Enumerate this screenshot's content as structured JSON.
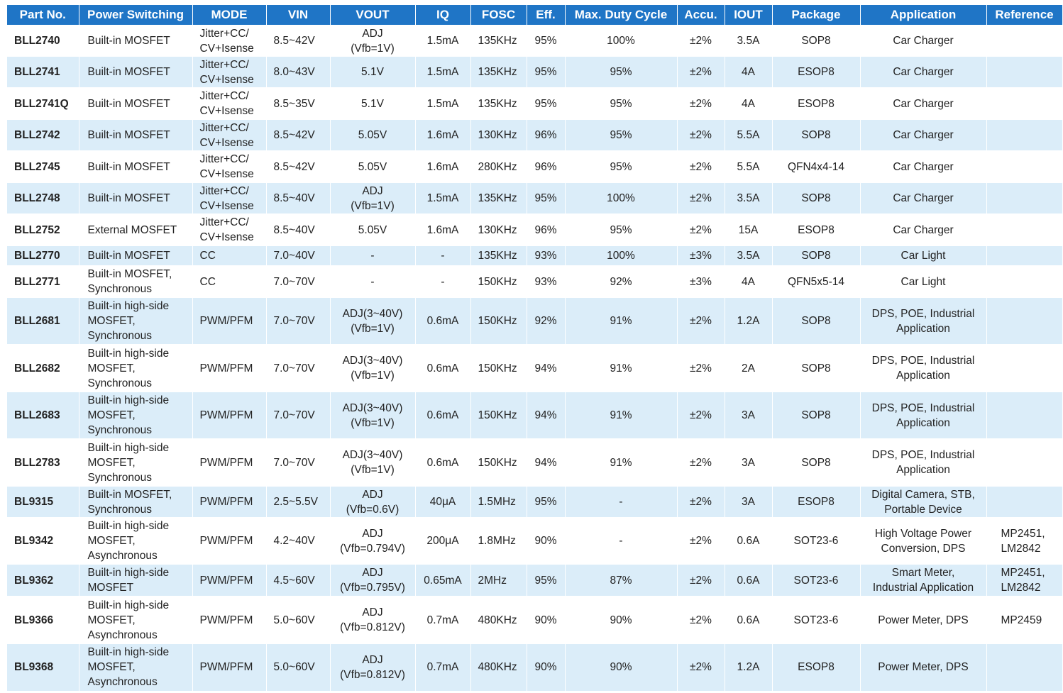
{
  "table": {
    "headers": [
      "Part No.",
      "Power Switching",
      "MODE",
      "VIN",
      "VOUT",
      "IQ",
      "FOSC",
      "Eff.",
      "Max. Duty Cycle",
      "Accu.",
      "IOUT",
      "Package",
      "Application",
      "Reference"
    ],
    "rows": [
      {
        "part": "BLL2740",
        "switching": [
          "Built-in MOSFET"
        ],
        "mode": [
          "Jitter+CC/",
          "CV+Isense"
        ],
        "vin": "8.5~42V",
        "vout": [
          "ADJ",
          "(Vfb=1V)"
        ],
        "iq": "1.5mA",
        "fosc": "135KHz",
        "eff": "95%",
        "duty": "100%",
        "accu": "±2%",
        "iout": "3.5A",
        "package": "SOP8",
        "application": [
          "Car Charger"
        ],
        "reference": []
      },
      {
        "part": "BLL2741",
        "switching": [
          "Built-in MOSFET"
        ],
        "mode": [
          "Jitter+CC/",
          "CV+Isense"
        ],
        "vin": "8.0~43V",
        "vout": [
          "5.1V"
        ],
        "iq": "1.5mA",
        "fosc": "135KHz",
        "eff": "95%",
        "duty": "95%",
        "accu": "±2%",
        "iout": "4A",
        "package": "ESOP8",
        "application": [
          "Car Charger"
        ],
        "reference": []
      },
      {
        "part": "BLL2741Q",
        "switching": [
          "Built-in MOSFET"
        ],
        "mode": [
          "Jitter+CC/",
          "CV+Isense"
        ],
        "vin": "8.5~35V",
        "vout": [
          "5.1V"
        ],
        "iq": "1.5mA",
        "fosc": "135KHz",
        "eff": "95%",
        "duty": "95%",
        "accu": "±2%",
        "iout": "4A",
        "package": "ESOP8",
        "application": [
          "Car Charger"
        ],
        "reference": []
      },
      {
        "part": "BLL2742",
        "switching": [
          "Built-in MOSFET"
        ],
        "mode": [
          "Jitter+CC/",
          "CV+Isense"
        ],
        "vin": "8.5~42V",
        "vout": [
          "5.05V"
        ],
        "iq": "1.6mA",
        "fosc": "130KHz",
        "eff": "96%",
        "duty": "95%",
        "accu": "±2%",
        "iout": "5.5A",
        "package": "SOP8",
        "application": [
          "Car Charger"
        ],
        "reference": []
      },
      {
        "part": "BLL2745",
        "switching": [
          "Built-in MOSFET"
        ],
        "mode": [
          "Jitter+CC/",
          "CV+Isense"
        ],
        "vin": "8.5~42V",
        "vout": [
          "5.05V"
        ],
        "iq": "1.6mA",
        "fosc": "280KHz",
        "eff": "96%",
        "duty": "95%",
        "accu": "±2%",
        "iout": "5.5A",
        "package": "QFN4x4-14",
        "application": [
          "Car Charger"
        ],
        "reference": []
      },
      {
        "part": "BLL2748",
        "switching": [
          "Built-in MOSFET"
        ],
        "mode": [
          "Jitter+CC/",
          "CV+Isense"
        ],
        "vin": "8.5~40V",
        "vout": [
          "ADJ",
          "(Vfb=1V)"
        ],
        "iq": "1.5mA",
        "fosc": "135KHz",
        "eff": "95%",
        "duty": "100%",
        "accu": "±2%",
        "iout": "3.5A",
        "package": "SOP8",
        "application": [
          "Car Charger"
        ],
        "reference": []
      },
      {
        "part": "BLL2752",
        "switching": [
          "External MOSFET"
        ],
        "mode": [
          "Jitter+CC/",
          "CV+Isense"
        ],
        "vin": "8.5~40V",
        "vout": [
          "5.05V"
        ],
        "iq": "1.6mA",
        "fosc": "130KHz",
        "eff": "96%",
        "duty": "95%",
        "accu": "±2%",
        "iout": "15A",
        "package": "ESOP8",
        "application": [
          "Car Charger"
        ],
        "reference": []
      },
      {
        "part": "BLL2770",
        "switching": [
          "Built-in MOSFET"
        ],
        "mode": [
          "CC"
        ],
        "vin": "7.0~40V",
        "vout": [
          "-"
        ],
        "iq": "-",
        "fosc": "135KHz",
        "eff": "93%",
        "duty": "100%",
        "accu": "±3%",
        "iout": "3.5A",
        "package": "SOP8",
        "application": [
          "Car Light"
        ],
        "reference": []
      },
      {
        "part": "BLL2771",
        "switching": [
          "Built-in MOSFET,",
          "Synchronous"
        ],
        "mode": [
          "CC"
        ],
        "vin": "7.0~70V",
        "vout": [
          "-"
        ],
        "iq": "-",
        "fosc": "150KHz",
        "eff": "93%",
        "duty": "92%",
        "accu": "±3%",
        "iout": "4A",
        "package": "QFN5x5-14",
        "application": [
          "Car Light"
        ],
        "reference": []
      },
      {
        "part": "BLL2681",
        "switching": [
          "Built-in high-side",
          "MOSFET,",
          "Synchronous"
        ],
        "mode": [
          "PWM/PFM"
        ],
        "vin": "7.0~70V",
        "vout": [
          "ADJ(3~40V)",
          "(Vfb=1V)"
        ],
        "iq": "0.6mA",
        "fosc": "150KHz",
        "eff": "92%",
        "duty": "91%",
        "accu": "±2%",
        "iout": "1.2A",
        "package": "SOP8",
        "application": [
          "DPS, POE, Industrial",
          "Application"
        ],
        "reference": []
      },
      {
        "part": "BLL2682",
        "switching": [
          "Built-in high-side",
          "MOSFET,",
          "Synchronous"
        ],
        "mode": [
          "PWM/PFM"
        ],
        "vin": "7.0~70V",
        "vout": [
          "ADJ(3~40V)",
          "(Vfb=1V)"
        ],
        "iq": "0.6mA",
        "fosc": "150KHz",
        "eff": "94%",
        "duty": "91%",
        "accu": "±2%",
        "iout": "2A",
        "package": "SOP8",
        "application": [
          "DPS, POE, Industrial",
          "Application"
        ],
        "reference": []
      },
      {
        "part": "BLL2683",
        "switching": [
          "Built-in high-side",
          "MOSFET,",
          "Synchronous"
        ],
        "mode": [
          "PWM/PFM"
        ],
        "vin": "7.0~70V",
        "vout": [
          "ADJ(3~40V)",
          "(Vfb=1V)"
        ],
        "iq": "0.6mA",
        "fosc": "150KHz",
        "eff": "94%",
        "duty": "91%",
        "accu": "±2%",
        "iout": "3A",
        "package": "SOP8",
        "application": [
          "DPS, POE, Industrial",
          "Application"
        ],
        "reference": []
      },
      {
        "part": "BLL2783",
        "switching": [
          "Built-in high-side",
          "MOSFET,",
          "Synchronous"
        ],
        "mode": [
          "PWM/PFM"
        ],
        "vin": "7.0~70V",
        "vout": [
          "ADJ(3~40V)",
          "(Vfb=1V)"
        ],
        "iq": "0.6mA",
        "fosc": "150KHz",
        "eff": "94%",
        "duty": "91%",
        "accu": "±2%",
        "iout": "3A",
        "package": "SOP8",
        "application": [
          "DPS, POE, Industrial",
          "Application"
        ],
        "reference": []
      },
      {
        "part": "BL9315",
        "switching": [
          "Built-in MOSFET,",
          "Synchronous"
        ],
        "mode": [
          "PWM/PFM"
        ],
        "vin": "2.5~5.5V",
        "vout": [
          "ADJ",
          "(Vfb=0.6V)"
        ],
        "iq": "40μA",
        "fosc": "1.5MHz",
        "eff": "95%",
        "duty": "-",
        "accu": "±2%",
        "iout": "3A",
        "package": "ESOP8",
        "application": [
          "Digital Camera, STB,",
          "Portable Device"
        ],
        "reference": []
      },
      {
        "part": "BL9342",
        "switching": [
          "Built-in high-side",
          "MOSFET,",
          "Asynchronous"
        ],
        "mode": [
          "PWM/PFM"
        ],
        "vin": "4.2~40V",
        "vout": [
          "ADJ",
          "(Vfb=0.794V)"
        ],
        "iq": "200μA",
        "fosc": "1.8MHz",
        "eff": "90%",
        "duty": "-",
        "accu": "±2%",
        "iout": "0.6A",
        "package": "SOT23-6",
        "application": [
          "High Voltage Power",
          "Conversion, DPS"
        ],
        "reference": [
          "MP2451,",
          "LM2842"
        ]
      },
      {
        "part": "BL9362",
        "switching": [
          "Built-in high-side",
          "MOSFET"
        ],
        "mode": [
          "PWM/PFM"
        ],
        "vin": "4.5~60V",
        "vout": [
          "ADJ",
          "(Vfb=0.795V)"
        ],
        "iq": "0.65mA",
        "fosc": "2MHz",
        "eff": "95%",
        "duty": "87%",
        "accu": "±2%",
        "iout": "0.6A",
        "package": "SOT23-6",
        "application": [
          "Smart Meter,",
          "Industrial Application"
        ],
        "reference": [
          "MP2451,",
          "LM2842"
        ]
      },
      {
        "part": "BL9366",
        "switching": [
          "Built-in high-side",
          "MOSFET,",
          "Asynchronous"
        ],
        "mode": [
          "PWM/PFM"
        ],
        "vin": "5.0~60V",
        "vout": [
          "ADJ",
          "(Vfb=0.812V)"
        ],
        "iq": "0.7mA",
        "fosc": "480KHz",
        "eff": "90%",
        "duty": "90%",
        "accu": "±2%",
        "iout": "0.6A",
        "package": "SOT23-6",
        "application": [
          "Power Meter, DPS"
        ],
        "reference": [
          "MP2459"
        ]
      },
      {
        "part": "BL9368",
        "switching": [
          "Built-in high-side",
          "MOSFET,",
          "Asynchronous"
        ],
        "mode": [
          "PWM/PFM"
        ],
        "vin": "5.0~60V",
        "vout": [
          "ADJ",
          "(Vfb=0.812V)"
        ],
        "iq": "0.7mA",
        "fosc": "480KHz",
        "eff": "90%",
        "duty": "90%",
        "accu": "±2%",
        "iout": "1.2A",
        "package": "ESOP8",
        "application": [
          "Power Meter, DPS"
        ],
        "reference": []
      }
    ]
  }
}
